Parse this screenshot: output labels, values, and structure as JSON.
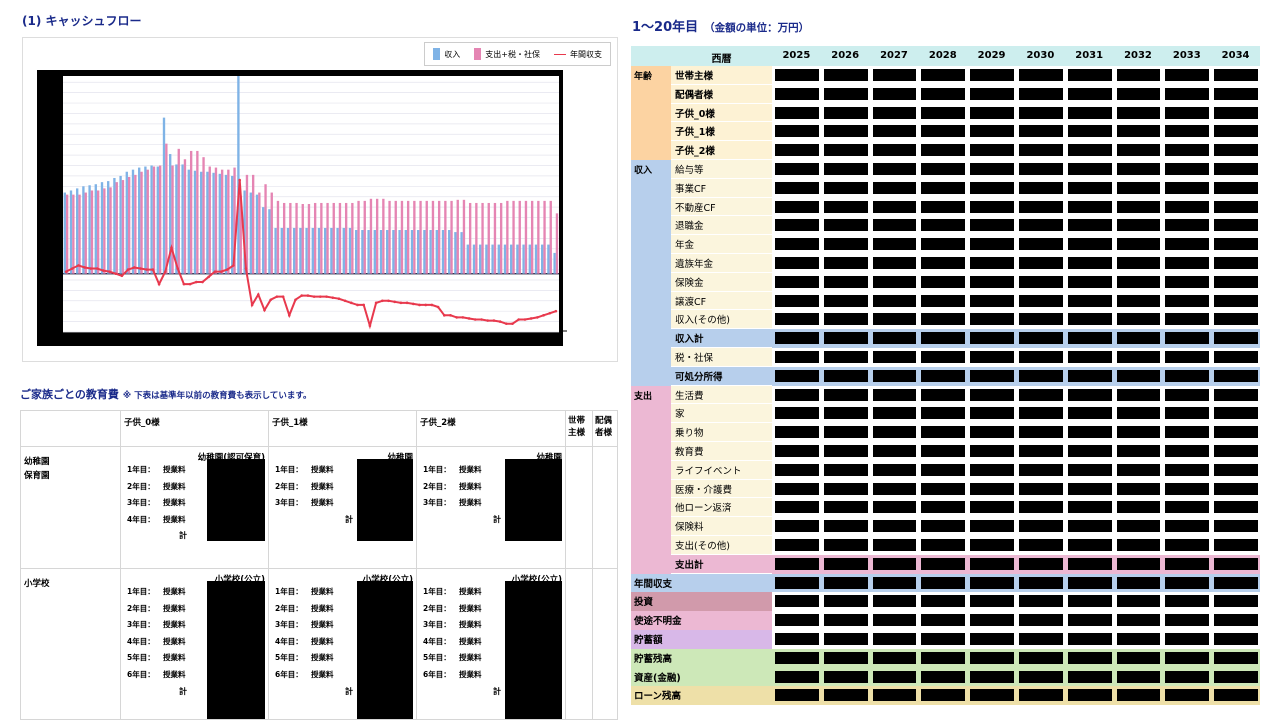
{
  "cashflow": {
    "title": "(1) キャッシュフロー",
    "legend": [
      {
        "label": "収入",
        "color": "#7fb3e6"
      },
      {
        "label": "支出+税・社保",
        "color": "#e585b3"
      },
      {
        "label": "年間収支",
        "color": "#e8394d"
      }
    ]
  },
  "chart_data": {
    "type": "bar",
    "title": "",
    "xlabel": "",
    "ylabel": "",
    "ylim": [
      -56,
      190
    ],
    "series": [
      {
        "name": "収入",
        "color": "#7fb3e6",
        "values": [
          78,
          80,
          82,
          84,
          85,
          86,
          88,
          89,
          92,
          94,
          98,
          100,
          102,
          103,
          104,
          103,
          150,
          115,
          105,
          105,
          100,
          99,
          98,
          98,
          97,
          96,
          95,
          94,
          190,
          80,
          78,
          76,
          64,
          62,
          44,
          44,
          44,
          44,
          44,
          44,
          44,
          44,
          44,
          44,
          44,
          44,
          44,
          42,
          42,
          42,
          42,
          42,
          42,
          42,
          42,
          42,
          42,
          42,
          42,
          42,
          42,
          42,
          42,
          40,
          40,
          28,
          28,
          28,
          28,
          28,
          28,
          28,
          28,
          28,
          28,
          28,
          28,
          28,
          28,
          20
        ]
      },
      {
        "name": "支出+税・社保",
        "color": "#e585b3",
        "values": [
          76,
          76,
          76,
          78,
          80,
          80,
          82,
          83,
          88,
          90,
          93,
          95,
          98,
          100,
          103,
          104,
          125,
          104,
          120,
          110,
          118,
          118,
          112,
          103,
          102,
          100,
          100,
          102,
          75,
          95,
          95,
          78,
          86,
          78,
          70,
          68,
          68,
          68,
          67,
          67,
          68,
          68,
          68,
          68,
          68,
          68,
          68,
          70,
          70,
          72,
          72,
          72,
          70,
          70,
          70,
          70,
          70,
          70,
          70,
          70,
          70,
          70,
          70,
          71,
          71,
          68,
          68,
          68,
          68,
          68,
          68,
          70,
          70,
          70,
          70,
          70,
          70,
          70,
          70,
          58
        ]
      },
      {
        "name": "年間収支",
        "color": "#e8394d",
        "values": [
          2,
          5,
          8,
          6,
          5,
          5,
          3,
          2,
          0,
          -2,
          4,
          6,
          5,
          4,
          4,
          -10,
          2,
          25,
          5,
          -10,
          -10,
          -8,
          -8,
          -3,
          2,
          2,
          4,
          8,
          90,
          5,
          -30,
          -20,
          -35,
          -25,
          -22,
          -22,
          -40,
          -25,
          -21,
          -21,
          -22,
          -22,
          -22,
          -23,
          -24,
          -26,
          -28,
          -30,
          -30,
          -50,
          -28,
          -26,
          -26,
          -27,
          -28,
          -28,
          -29,
          -30,
          -30,
          -30,
          -32,
          -40,
          -40,
          -42,
          -42,
          -43,
          -44,
          -44,
          -45,
          -45,
          -46,
          -48,
          -48,
          -44,
          -44,
          -43,
          -42,
          -40,
          -38,
          -36
        ]
      }
    ]
  },
  "education": {
    "title": "ご家族ごとの教育費",
    "note": "※ 下表は基準年以前の教育費も表示しています。",
    "headers": [
      "子供_0様",
      "子供_1様",
      "子供_2様",
      "世帯主様",
      "配偶者様"
    ],
    "header_lines": {
      "setai": [
        "世帯",
        "主様"
      ],
      "haigu": [
        "配偶",
        "者様"
      ]
    },
    "rows": [
      {
        "label_lines": [
          "幼稚園",
          "保育園"
        ],
        "schools": [
          "幼稚園(認可保育)",
          "幼稚園",
          "幼稚園"
        ],
        "years": [
          4,
          3,
          3
        ]
      },
      {
        "label_lines": [
          "小学校"
        ],
        "schools": [
          "小学校(公立)",
          "小学校(公立)",
          "小学校(公立)"
        ],
        "years": [
          6,
          6,
          6
        ]
      }
    ],
    "year_labels": [
      "1年目：",
      "2年目：",
      "3年目：",
      "4年目：",
      "5年目：",
      "6年目："
    ],
    "fee_label": "授業料",
    "total_label": "計"
  },
  "table": {
    "title": "1～20年目",
    "unit": "（金額の単位：万円）",
    "year_header": "西暦",
    "years": [
      "2025",
      "2026",
      "2027",
      "2028",
      "2029",
      "2030",
      "2031",
      "2032",
      "2033",
      "2034"
    ],
    "sections": [
      {
        "category": "年齢",
        "rows": [
          "世帯主様",
          "配偶者様",
          "子供_0様",
          "子供_1様",
          "子供_2様"
        ]
      },
      {
        "category": "収入",
        "rows": [
          "給与等",
          "事業CF",
          "不動産CF",
          "退職金",
          "年金",
          "遺族年金",
          "保険金",
          "譲渡CF",
          "収入(その他)"
        ],
        "total": "収入計"
      },
      {
        "mid": [
          "税・社保"
        ],
        "total": "可処分所得"
      },
      {
        "category": "支出",
        "rows": [
          "生活費",
          "家",
          "乗り物",
          "教育費",
          "ライフイベント",
          "医療・介護費",
          "他ローン返済",
          "保険料",
          "支出(その他)"
        ],
        "total": "支出計"
      }
    ],
    "bottom_rows": [
      "年間収支",
      "投資",
      "使途不明金",
      "貯蓄額",
      "貯蓄残高",
      "資産(金融)",
      "ローン残高"
    ]
  }
}
